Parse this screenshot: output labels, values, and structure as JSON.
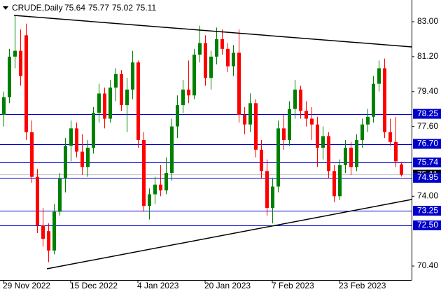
{
  "chart_data": {
    "type": "candlestick",
    "title": "CRUDE,Daily",
    "categories": [
      "29 Nov 2022",
      null,
      null,
      null,
      null,
      null,
      null,
      null,
      null,
      null,
      null,
      null,
      "15 Dec 2022",
      null,
      null,
      null,
      null,
      null,
      null,
      null,
      null,
      null,
      null,
      null,
      "4 Jan 2023",
      null,
      null,
      null,
      null,
      null,
      null,
      null,
      null,
      null,
      null,
      null,
      "20 Jan 2023",
      null,
      null,
      null,
      null,
      null,
      null,
      null,
      null,
      null,
      null,
      null,
      "7 Feb 2023",
      null,
      null,
      null,
      null,
      null,
      null,
      null,
      null,
      null,
      null,
      null,
      "23 Feb 2023",
      null,
      null,
      null,
      null,
      null,
      null,
      null,
      null,
      null,
      null,
      null
    ],
    "open": [
      78.2,
      79.1,
      81.2,
      81.5,
      82.3,
      77.3,
      75.0,
      72.5,
      72.2,
      71.2,
      73.2,
      74.9,
      76.6,
      77.5,
      76.3,
      75.5,
      76.5,
      78.3,
      79.3,
      78.0,
      79.6,
      80.3,
      78.7,
      79.5,
      80.9,
      76.9,
      73.5,
      74.1,
      74.6,
      74.3,
      75.2,
      77.6,
      78.7,
      79.5,
      79.2,
      81.3,
      81.9,
      80.1,
      81.2,
      82.1,
      81.6,
      80.7,
      81.4,
      78.2,
      77.7,
      78.8,
      76.4,
      75.3,
      73.4,
      74.5,
      77.5,
      76.9,
      78.5,
      79.5,
      78.4,
      78.0,
      77.7,
      76.5,
      77.1,
      75.3,
      74.0,
      75.6,
      76.5,
      75.5,
      76.9,
      77.7,
      78.1,
      79.8,
      80.6,
      77.3,
      76.8,
      75.64
    ],
    "high": [
      79.4,
      81.6,
      83.3,
      82.6,
      82.9,
      77.9,
      75.4,
      73.4,
      72.6,
      73.6,
      75.2,
      77.0,
      77.9,
      77.8,
      77.2,
      76.9,
      78.6,
      79.8,
      79.6,
      80.0,
      80.6,
      80.5,
      80.1,
      81.5,
      81.0,
      77.3,
      74.4,
      75.0,
      75.6,
      76.0,
      78.0,
      79.2,
      80.0,
      81.0,
      81.6,
      82.8,
      82.3,
      81.5,
      82.7,
      82.6,
      81.9,
      81.8,
      82.6,
      78.6,
      79.3,
      79.0,
      76.9,
      75.9,
      74.9,
      77.9,
      78.2,
      78.9,
      80.0,
      79.7,
      78.9,
      78.6,
      78.1,
      77.6,
      77.3,
      75.6,
      75.9,
      76.9,
      76.8,
      77.2,
      78.0,
      78.5,
      80.2,
      81.0,
      81.1,
      78.0,
      78.1,
      75.77
    ],
    "low": [
      77.6,
      78.8,
      80.6,
      79.7,
      76.9,
      74.7,
      72.1,
      71.4,
      70.6,
      71.0,
      73.0,
      74.2,
      75.8,
      76.0,
      75.1,
      75.0,
      76.2,
      77.8,
      77.5,
      77.8,
      78.9,
      78.4,
      77.3,
      79.0,
      76.5,
      73.2,
      72.8,
      73.6,
      74.0,
      74.1,
      74.8,
      77.0,
      78.3,
      78.8,
      79.0,
      80.9,
      79.7,
      79.5,
      80.8,
      81.3,
      80.4,
      80.2,
      77.8,
      77.2,
      77.3,
      76.0,
      74.9,
      73.0,
      72.6,
      74.2,
      76.4,
      76.6,
      78.0,
      78.0,
      77.6,
      76.9,
      75.5,
      75.9,
      74.9,
      73.7,
      73.8,
      75.2,
      75.1,
      75.3,
      76.5,
      77.3,
      77.8,
      79.4,
      77.0,
      76.6,
      75.5,
      75.02
    ],
    "close": [
      79.1,
      81.2,
      81.5,
      80.2,
      77.3,
      75.0,
      72.5,
      71.8,
      71.2,
      73.2,
      74.9,
      76.6,
      77.5,
      76.3,
      75.5,
      76.5,
      78.3,
      79.3,
      78.0,
      79.6,
      80.3,
      78.7,
      79.5,
      80.9,
      76.9,
      73.5,
      74.1,
      74.6,
      74.3,
      75.2,
      77.6,
      78.7,
      79.5,
      79.2,
      81.3,
      81.9,
      80.1,
      81.2,
      82.1,
      81.6,
      80.7,
      81.4,
      78.2,
      77.7,
      78.8,
      76.4,
      75.3,
      73.4,
      74.5,
      77.5,
      76.9,
      78.5,
      79.5,
      78.4,
      78.0,
      77.7,
      76.5,
      77.1,
      75.3,
      74.0,
      75.6,
      76.5,
      75.5,
      76.9,
      77.7,
      78.1,
      79.8,
      80.6,
      77.3,
      76.8,
      75.8,
      75.11
    ],
    "up_color": "#008000",
    "down_color": "#ff0000",
    "levels": [
      78.25,
      {
        "value": 76.7,
        "label": "76.70"
      },
      75.74,
      74.95,
      73.25,
      {
        "value": 72.5,
        "label": "72.50"
      }
    ],
    "level_color": "#0000cc",
    "ylim": [
      69.68,
      84.12
    ],
    "yticks": [
      {
        "value": 83,
        "label": "83.00"
      },
      {
        "value": 81.2,
        "label": "81.20"
      },
      {
        "value": 79.4,
        "label": "79.40"
      },
      {
        "value": 77.6,
        "label": "77.60"
      },
      {
        "value": 74,
        "label": "74.00"
      },
      {
        "value": 70.4,
        "label": "70.40"
      }
    ]
  }
}
